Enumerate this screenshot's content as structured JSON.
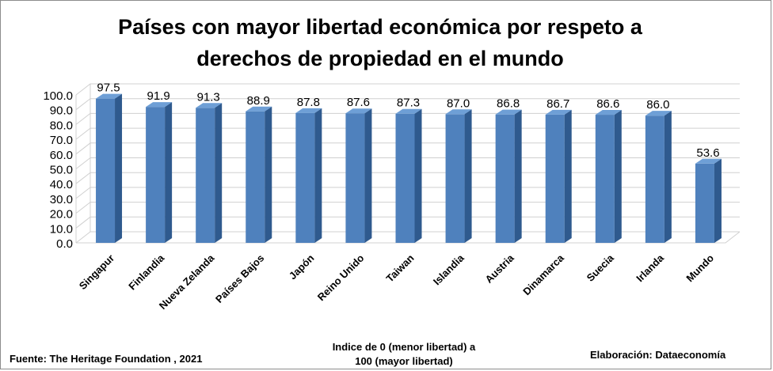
{
  "chart_data": {
    "type": "bar",
    "title": "Países con mayor libertad económica por respeto a\nderechos de propiedad en el mundo",
    "xlabel": "Indice de 0 (menor libertad) a\n100  (mayor libertad)",
    "ylabel": "",
    "ylim": [
      0,
      100
    ],
    "yticks": [
      "0.0",
      "10.0",
      "20.0",
      "30.0",
      "40.0",
      "50.0",
      "60.0",
      "70.0",
      "80.0",
      "90.0",
      "100.0"
    ],
    "grid": true,
    "categories": [
      "Singapur",
      "Finlandia",
      "Nueva Zelanda",
      "Países Bajos",
      "Japón",
      "Reino Unido",
      "Taiwan",
      "Islandia",
      "Austria",
      "Dinamarca",
      "Suecia",
      "Irlanda",
      "Mundo"
    ],
    "values": [
      97.5,
      91.9,
      91.3,
      88.9,
      87.8,
      87.6,
      87.3,
      87.0,
      86.8,
      86.7,
      86.6,
      86.0,
      53.6
    ],
    "data_labels": [
      "97.5",
      "91.9",
      "91.3",
      "88.9",
      "87.8",
      "87.6",
      "87.3",
      "87.0",
      "86.8",
      "86.7",
      "86.6",
      "86.0",
      "53.6"
    ]
  },
  "footer": {
    "source": "Fuente: The Heritage Foundation , 2021",
    "credit": "Elaboración: Dataeconomía"
  },
  "colors": {
    "bar_front": "#4f81bd",
    "bar_side": "#2f5a8e",
    "bar_top": "#6e9fd6",
    "grid": "#d0d0d0"
  }
}
